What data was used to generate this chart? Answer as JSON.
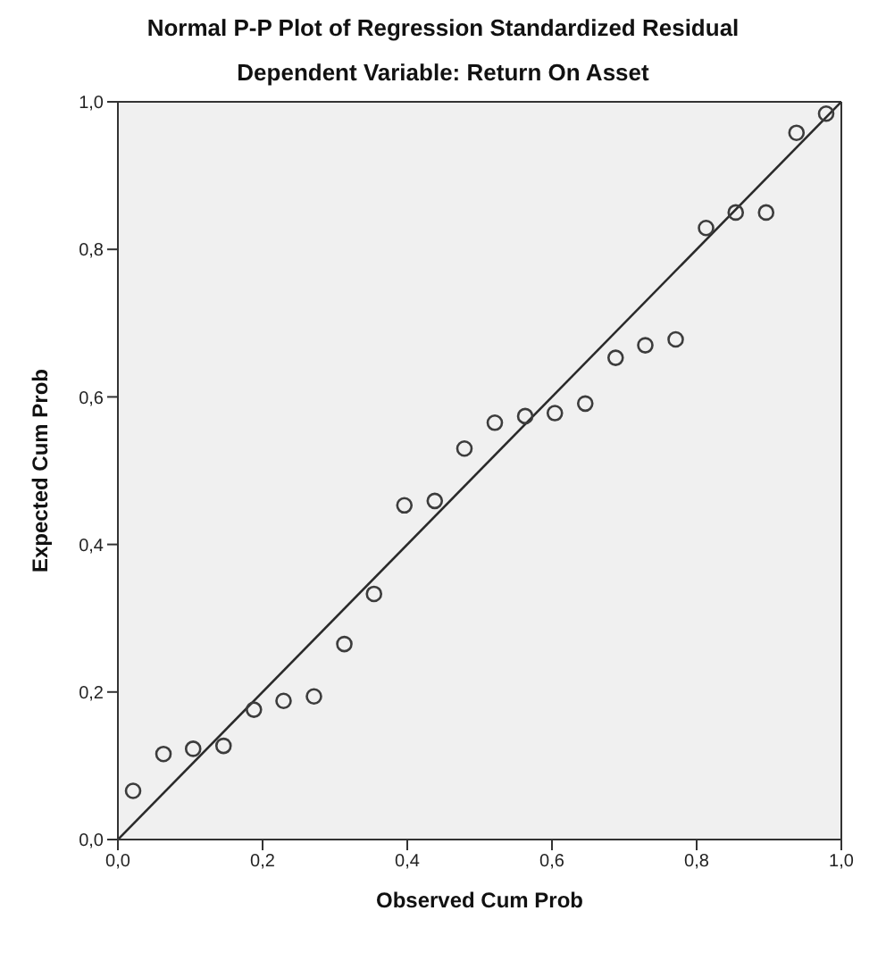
{
  "chart_data": {
    "type": "scatter",
    "title": "Normal P-P Plot of Regression Standardized Residual",
    "subtitle": "Dependent Variable: Return On Asset",
    "xlabel": "Observed Cum Prob",
    "ylabel": "Expected Cum Prob",
    "x": [
      0.021,
      0.063,
      0.104,
      0.146,
      0.188,
      0.229,
      0.271,
      0.313,
      0.354,
      0.396,
      0.438,
      0.479,
      0.521,
      0.563,
      0.604,
      0.646,
      0.688,
      0.729,
      0.771,
      0.813,
      0.854,
      0.896,
      0.938,
      0.979
    ],
    "series": [
      {
        "color": "#3c3c3c",
        "marker": "circle",
        "values": [
          0.066,
          0.116,
          0.123,
          0.127,
          0.176,
          0.188,
          0.194,
          0.265,
          0.333,
          0.453,
          0.459,
          0.53,
          0.565,
          0.574,
          0.578,
          0.591,
          0.653,
          0.67,
          0.678,
          0.829,
          0.85,
          0.85,
          0.958,
          0.984
        ]
      },
      {
        "type": "line",
        "color": "#2a2a2a",
        "x": [
          0,
          1
        ],
        "values": [
          0,
          1
        ]
      }
    ],
    "xlim": [
      0,
      1
    ],
    "ylim": [
      0,
      1
    ],
    "xticks": [
      {
        "value": 0,
        "label": "0,0"
      },
      {
        "value": 0.2,
        "label": "0,2"
      },
      {
        "value": 0.4,
        "label": "0,4"
      },
      {
        "value": 0.6,
        "label": "0,6"
      },
      {
        "value": 0.8,
        "label": "0,8"
      },
      {
        "value": 1,
        "label": "1,0"
      }
    ],
    "yticks": [
      {
        "value": 0,
        "label": "0,0"
      },
      {
        "value": 0.2,
        "label": "0,2"
      },
      {
        "value": 0.4,
        "label": "0,4"
      },
      {
        "value": 0.6,
        "label": "0,6"
      },
      {
        "value": 0.8,
        "label": "0,8"
      },
      {
        "value": 1,
        "label": "1,0"
      }
    ],
    "grid": false
  }
}
